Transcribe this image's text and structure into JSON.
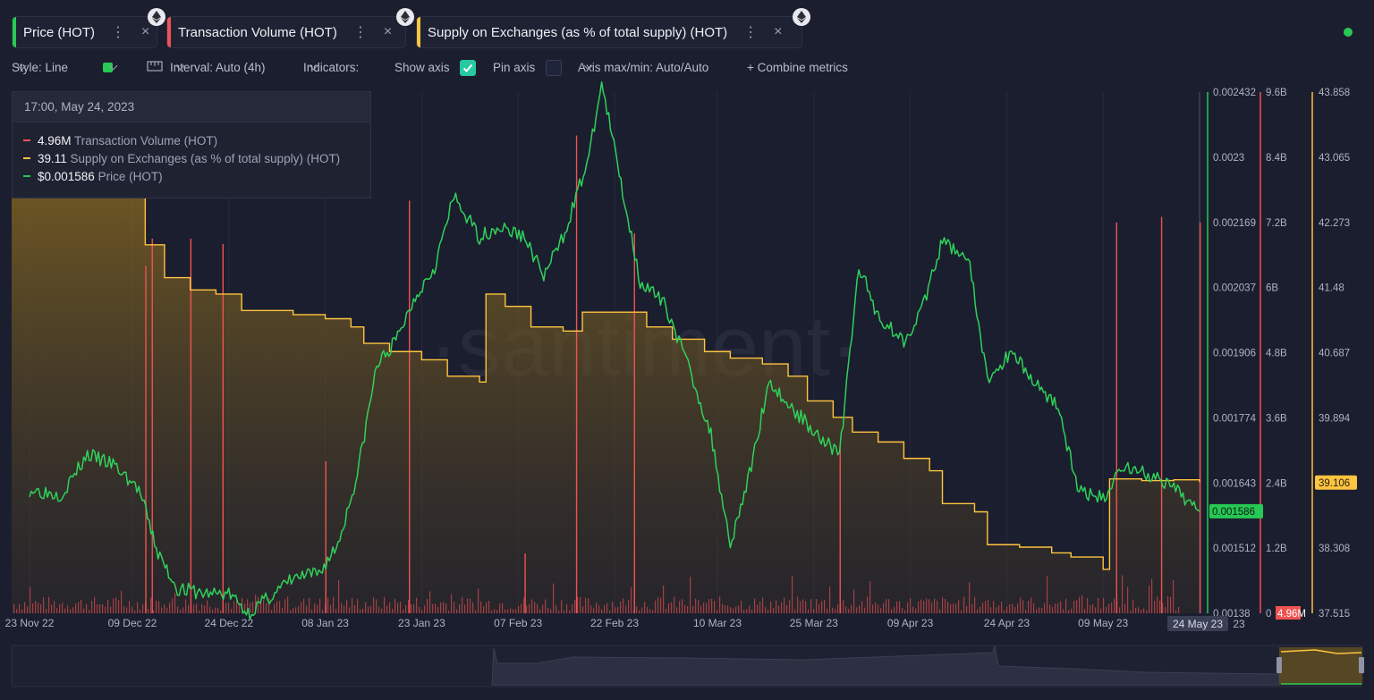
{
  "tabs": [
    {
      "label": "Price (HOT)",
      "color": "#26c953",
      "menu": "⋮",
      "close": "×"
    },
    {
      "label": "Transaction Volume (HOT)",
      "color": "#ef5350",
      "menu": "⋮",
      "close": "×"
    },
    {
      "label": "Supply on Exchanges (as % of total supply) (HOT)",
      "color": "#ffc440",
      "menu": "⋮",
      "close": "×"
    }
  ],
  "toolbar": {
    "style": "Style: Line",
    "interval": "Interval: Auto (4h)",
    "indicators": "Indicators:",
    "show_axis": "Show axis",
    "pin_axis": "Pin axis",
    "axis_maxmin": "Axis max/min: Auto/Auto",
    "combine": "+ Combine metrics"
  },
  "tooltip": {
    "date": "17:00, May 24, 2023",
    "rows": [
      {
        "value": "4.96M",
        "name": "Transaction Volume (HOT)",
        "color": "#ef5350"
      },
      {
        "value": "39.11",
        "name": "Supply on Exchanges (as % of total supply) (HOT)",
        "color": "#ffc440"
      },
      {
        "value": "$0.001586",
        "name": "Price (HOT)",
        "color": "#26c953"
      }
    ]
  },
  "watermark": "·santiment·",
  "chart_data": {
    "type": "line",
    "x_ticks": [
      "23 Nov 22",
      "09 Dec 22",
      "24 Dec 22",
      "08 Jan 23",
      "23 Jan 23",
      "07 Feb 23",
      "22 Feb 23",
      "10 Mar 23",
      "25 Mar 23",
      "09 Apr 23",
      "24 Apr 23",
      "09 May 23"
    ],
    "x_current_label": "24 May 23",
    "x_end_partial": "23",
    "price_axis": {
      "ticks": [
        "0.002432",
        "0.0023",
        "0.002169",
        "0.002037",
        "0.001906",
        "0.001774",
        "0.001643",
        "0.001512",
        "0.00138"
      ],
      "min": 0.00138,
      "max": 0.002432,
      "current": "0.001586",
      "color": "#26c953"
    },
    "volume_axis": {
      "ticks": [
        "9.6B",
        "8.4B",
        "7.2B",
        "6B",
        "4.8B",
        "3.6B",
        "2.4B",
        "1.2B",
        "0"
      ],
      "min": 0,
      "max": 9600000000,
      "current": "4.96M",
      "color": "#ef5350"
    },
    "supply_axis": {
      "ticks": [
        "43.858",
        "43.065",
        "42.273",
        "41.48",
        "40.687",
        "39.894",
        "39.101",
        "38.308",
        "37.515"
      ],
      "min": 37.515,
      "max": 43.858,
      "current": "39.106",
      "color": "#ffc440"
    },
    "series": [
      {
        "name": "Price (HOT)",
        "color": "#26c953",
        "points": [
          [
            "23 Nov 22",
            0.00163
          ],
          [
            "28 Nov 22",
            0.00162
          ],
          [
            "02 Dec 22",
            0.0017
          ],
          [
            "06 Dec 22",
            0.00168
          ],
          [
            "10 Dec 22",
            0.00163
          ],
          [
            "13 Dec 22",
            0.0015
          ],
          [
            "16 Dec 22",
            0.00143
          ],
          [
            "20 Dec 22",
            0.00142
          ],
          [
            "24 Dec 22",
            0.00142
          ],
          [
            "27 Dec 22",
            0.00138
          ],
          [
            "30 Dec 22",
            0.00141
          ],
          [
            "03 Jan 23",
            0.00145
          ],
          [
            "07 Jan 23",
            0.00146
          ],
          [
            "10 Jan 23",
            0.00152
          ],
          [
            "13 Jan 23",
            0.00166
          ],
          [
            "16 Jan 23",
            0.00188
          ],
          [
            "19 Jan 23",
            0.00193
          ],
          [
            "22 Jan 23",
            0.00202
          ],
          [
            "25 Jan 23",
            0.00208
          ],
          [
            "28 Jan 23",
            0.00222
          ],
          [
            "01 Feb 23",
            0.00214
          ],
          [
            "04 Feb 23",
            0.00216
          ],
          [
            "08 Feb 23",
            0.00214
          ],
          [
            "11 Feb 23",
            0.00206
          ],
          [
            "14 Feb 23",
            0.00214
          ],
          [
            "18 Feb 23",
            0.0023
          ],
          [
            "20 Feb 23",
            0.00245
          ],
          [
            "23 Feb 23",
            0.00225
          ],
          [
            "26 Feb 23",
            0.00205
          ],
          [
            "02 Mar 23",
            0.002
          ],
          [
            "06 Mar 23",
            0.00186
          ],
          [
            "09 Mar 23",
            0.00174
          ],
          [
            "12 Mar 23",
            0.00152
          ],
          [
            "15 Mar 23",
            0.00166
          ],
          [
            "18 Mar 23",
            0.00185
          ],
          [
            "21 Mar 23",
            0.0018
          ],
          [
            "25 Mar 23",
            0.00175
          ],
          [
            "29 Mar 23",
            0.0017
          ],
          [
            "01 Apr 23",
            0.00208
          ],
          [
            "04 Apr 23",
            0.00198
          ],
          [
            "08 Apr 23",
            0.00193
          ],
          [
            "11 Apr 23",
            0.002
          ],
          [
            "14 Apr 23",
            0.00213
          ],
          [
            "18 Apr 23",
            0.0021
          ],
          [
            "21 Apr 23",
            0.00185
          ],
          [
            "25 Apr 23",
            0.00191
          ],
          [
            "28 Apr 23",
            0.00185
          ],
          [
            "02 May 23",
            0.0018
          ],
          [
            "05 May 23",
            0.00163
          ],
          [
            "09 May 23",
            0.00161
          ],
          [
            "12 May 23",
            0.00168
          ],
          [
            "16 May 23",
            0.00166
          ],
          [
            "20 May 23",
            0.00163
          ],
          [
            "24 May 23",
            0.001586
          ]
        ]
      },
      {
        "name": "Transaction Volume (HOT)",
        "color": "#ef5350",
        "spikes": [
          [
            "11 Dec 22",
            6.4
          ],
          [
            "12 Dec 22",
            6.9
          ],
          [
            "18 Dec 22",
            6.9
          ],
          [
            "23 Dec 22",
            6.8
          ],
          [
            "08 Jan 23",
            2.8
          ],
          [
            "21 Jan 23",
            7.6
          ],
          [
            "08 Feb 23",
            1.1
          ],
          [
            "16 Feb 23",
            8.8
          ],
          [
            "25 Feb 23",
            7.0
          ],
          [
            "29 Mar 23",
            3.1
          ],
          [
            "11 May 23",
            7.2
          ],
          [
            "18 May 23",
            7.3
          ],
          [
            "24 May 23",
            7.2
          ]
        ],
        "volume_unit": "B"
      },
      {
        "name": "Supply on Exchanges (as % of total supply) (HOT)",
        "color": "#ffc440",
        "points": [
          [
            "23 Nov 22",
            42.75
          ],
          [
            "10 Dec 22",
            42.75
          ],
          [
            "11 Dec 22",
            42.0
          ],
          [
            "14 Dec 22",
            41.6
          ],
          [
            "18 Dec 22",
            41.45
          ],
          [
            "22 Dec 22",
            41.4
          ],
          [
            "26 Dec 22",
            41.2
          ],
          [
            "03 Jan 23",
            41.15
          ],
          [
            "08 Jan 23",
            41.1
          ],
          [
            "12 Jan 23",
            41.0
          ],
          [
            "14 Jan 23",
            40.8
          ],
          [
            "18 Jan 23",
            40.7
          ],
          [
            "23 Jan 23",
            40.6
          ],
          [
            "27 Jan 23",
            40.4
          ],
          [
            "01 Feb 23",
            40.33
          ],
          [
            "02 Feb 23",
            41.4
          ],
          [
            "05 Feb 23",
            41.25
          ],
          [
            "09 Feb 23",
            41.0
          ],
          [
            "14 Feb 23",
            40.95
          ],
          [
            "17 Feb 23",
            41.18
          ],
          [
            "22 Feb 23",
            41.18
          ],
          [
            "27 Feb 23",
            41.0
          ],
          [
            "03 Mar 23",
            40.85
          ],
          [
            "08 Mar 23",
            40.7
          ],
          [
            "12 Mar 23",
            40.62
          ],
          [
            "17 Mar 23",
            40.55
          ],
          [
            "21 Mar 23",
            40.4
          ],
          [
            "24 Mar 23",
            40.1
          ],
          [
            "28 Mar 23",
            39.9
          ],
          [
            "31 Mar 23",
            39.72
          ],
          [
            "04 Apr 23",
            39.6
          ],
          [
            "08 Apr 23",
            39.4
          ],
          [
            "12 Apr 23",
            39.25
          ],
          [
            "14 Apr 23",
            38.85
          ],
          [
            "19 Apr 23",
            38.75
          ],
          [
            "21 Apr 23",
            38.35
          ],
          [
            "26 Apr 23",
            38.32
          ],
          [
            "01 May 23",
            38.25
          ],
          [
            "04 May 23",
            38.2
          ],
          [
            "09 May 23",
            38.05
          ],
          [
            "10 May 23",
            39.15
          ],
          [
            "15 May 23",
            39.13
          ],
          [
            "20 May 23",
            39.14
          ],
          [
            "24 May 23",
            39.11
          ]
        ]
      }
    ]
  }
}
